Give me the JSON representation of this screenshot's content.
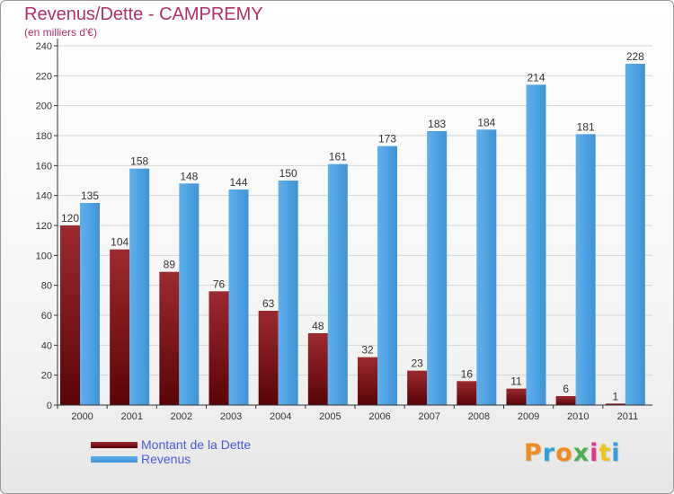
{
  "header": {
    "title": "Revenus/Dette - CAMPREMY",
    "subtitle": "(en milliers d'€)"
  },
  "legend": {
    "items": [
      {
        "label": "Montant de la Dette",
        "color": "#7a0f14"
      },
      {
        "label": "Revenus",
        "color": "#4a9fe0"
      }
    ]
  },
  "logo": {
    "text": "Proxiti",
    "colors": [
      "#f08c1e",
      "#2f9fd8",
      "#f08c1e",
      "#4caf50",
      "#e0338c",
      "#f0c419",
      "#2f9fd8"
    ]
  },
  "chart_data": {
    "type": "bar",
    "title": "Revenus/Dette - CAMPREMY",
    "subtitle": "(en milliers d'€)",
    "categories": [
      "2000",
      "2001",
      "2002",
      "2003",
      "2004",
      "2005",
      "2006",
      "2007",
      "2008",
      "2009",
      "2010",
      "2011"
    ],
    "series": [
      {
        "name": "Montant de la Dette",
        "color": "#7a0f14",
        "values": [
          120,
          104,
          89,
          76,
          63,
          48,
          32,
          23,
          16,
          11,
          6,
          1
        ]
      },
      {
        "name": "Revenus",
        "color": "#4a9fe0",
        "values": [
          135,
          158,
          148,
          144,
          150,
          161,
          173,
          183,
          184,
          214,
          181,
          228
        ]
      }
    ],
    "ylim": [
      0,
      240
    ],
    "yticks": [
      0,
      20,
      40,
      60,
      80,
      100,
      120,
      140,
      160,
      180,
      200,
      220,
      240
    ],
    "grid": true,
    "legend_position": "bottom-left"
  }
}
